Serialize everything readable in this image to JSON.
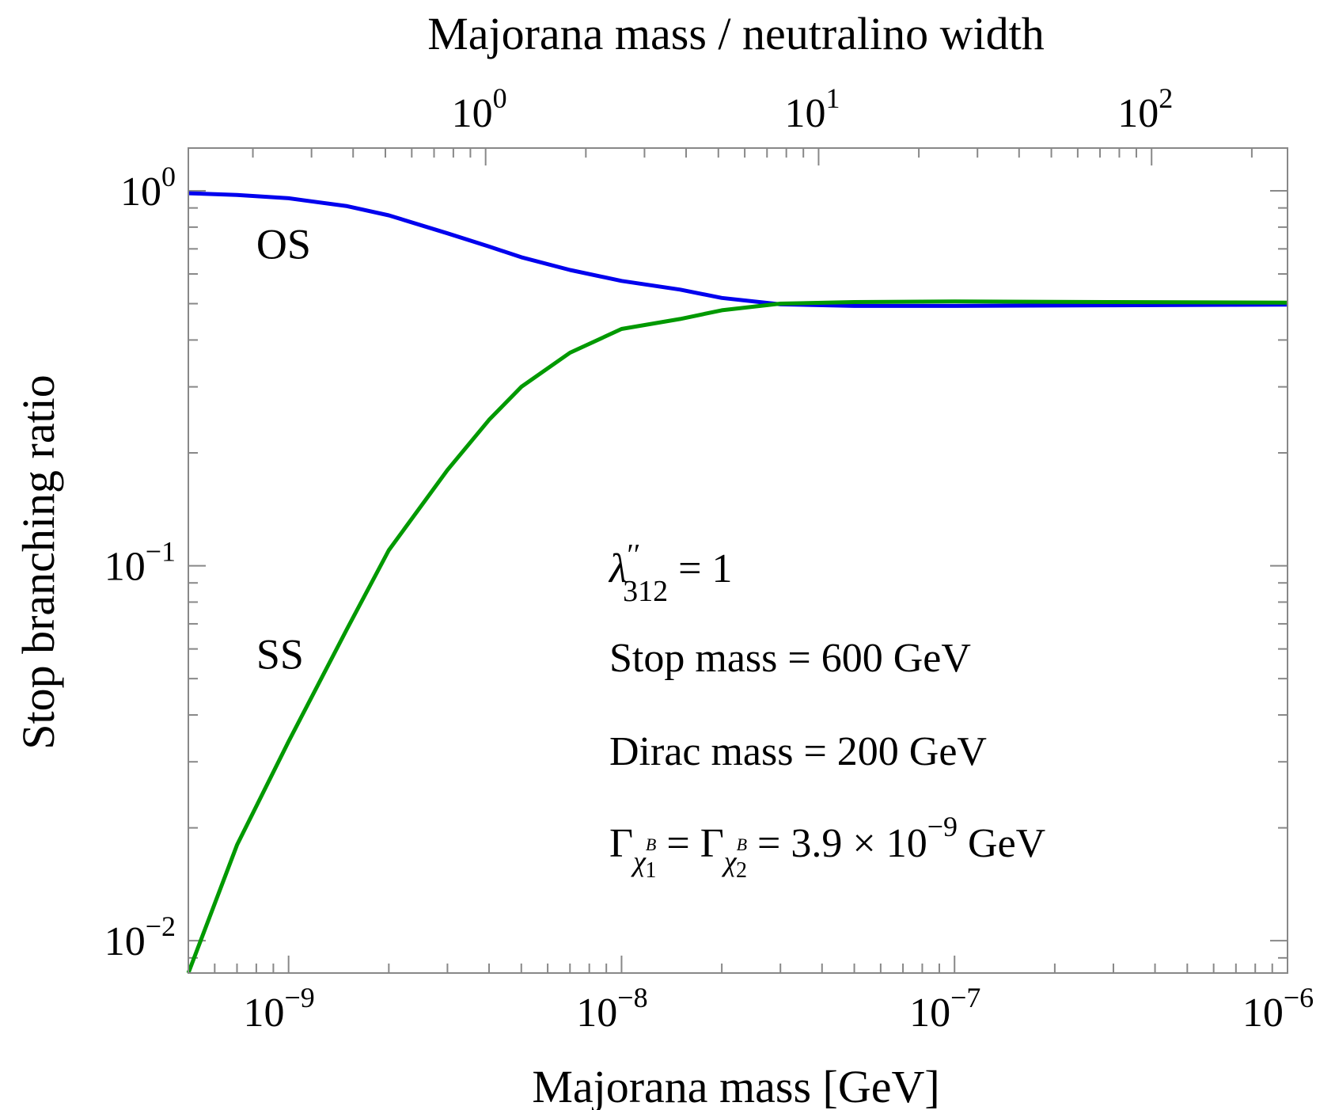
{
  "chart_data": {
    "type": "line",
    "xlabel": "Majorana mass [GeV]",
    "x2label": "Majorana mass / neutralino width",
    "ylabel": "Stop branching ratio",
    "xscale": "log",
    "yscale": "log",
    "xlim": [
      5e-10,
      1e-06
    ],
    "ylim": [
      0.0082,
      1.3
    ],
    "x2lim": [
      0.128,
      256
    ],
    "grid": false,
    "x_ticks": [
      {
        "value": 1e-09,
        "base": "10",
        "exp": "−9"
      },
      {
        "value": 1e-08,
        "base": "10",
        "exp": "−8"
      },
      {
        "value": 1e-07,
        "base": "10",
        "exp": "−7"
      },
      {
        "value": 1e-06,
        "base": "10",
        "exp": "−6"
      }
    ],
    "x2_ticks": [
      {
        "value": 1,
        "base": "10",
        "exp": "0"
      },
      {
        "value": 10,
        "base": "10",
        "exp": "1"
      },
      {
        "value": 100,
        "base": "10",
        "exp": "2"
      }
    ],
    "y_ticks": [
      {
        "value": 1,
        "base": "10",
        "exp": "0"
      },
      {
        "value": 0.1,
        "base": "10",
        "exp": "−1"
      },
      {
        "value": 0.01,
        "base": "10",
        "exp": "−2"
      }
    ],
    "series": [
      {
        "name": "OS",
        "color": "#0000ee",
        "x": [
          5e-10,
          7e-10,
          1e-09,
          1.5e-09,
          2e-09,
          3e-09,
          4e-09,
          5e-09,
          7e-09,
          1e-08,
          1.5e-08,
          2e-08,
          3e-08,
          5e-08,
          1e-07,
          3e-07,
          1e-06
        ],
        "y": [
          0.985,
          0.975,
          0.955,
          0.91,
          0.86,
          0.77,
          0.71,
          0.665,
          0.615,
          0.575,
          0.545,
          0.518,
          0.498,
          0.493,
          0.493,
          0.495,
          0.497
        ]
      },
      {
        "name": "SS",
        "color": "#009900",
        "x": [
          5e-10,
          7e-10,
          1e-09,
          1.5e-09,
          2e-09,
          3e-09,
          4e-09,
          5e-09,
          7e-09,
          1e-08,
          1.5e-08,
          2e-08,
          3e-08,
          5e-08,
          1e-07,
          3e-07,
          1e-06
        ],
        "y": [
          0.0082,
          0.018,
          0.034,
          0.068,
          0.11,
          0.18,
          0.245,
          0.3,
          0.37,
          0.428,
          0.455,
          0.48,
          0.5,
          0.505,
          0.507,
          0.505,
          0.503
        ]
      }
    ],
    "curve_labels": [
      {
        "text": "OS",
        "x": 8e-10,
        "y": 0.72
      },
      {
        "text": "SS",
        "x": 8e-10,
        "y": 0.058
      }
    ],
    "annotations": {
      "lambda": {
        "symbol": "λ",
        "prime": "′′",
        "sub": "312",
        "rest": " = 1"
      },
      "stop_mass": "Stop mass = 600 GeV",
      "dirac_mass": "Dirac mass = 200 GeV",
      "width": {
        "gamma": "Γ",
        "chi": "χ",
        "sup": "B",
        "sub1": "1",
        "sub2": "2",
        "eq": " = ",
        "value": " = 3.9 × 10",
        "exp": "−9",
        "unit": " GeV"
      }
    }
  }
}
